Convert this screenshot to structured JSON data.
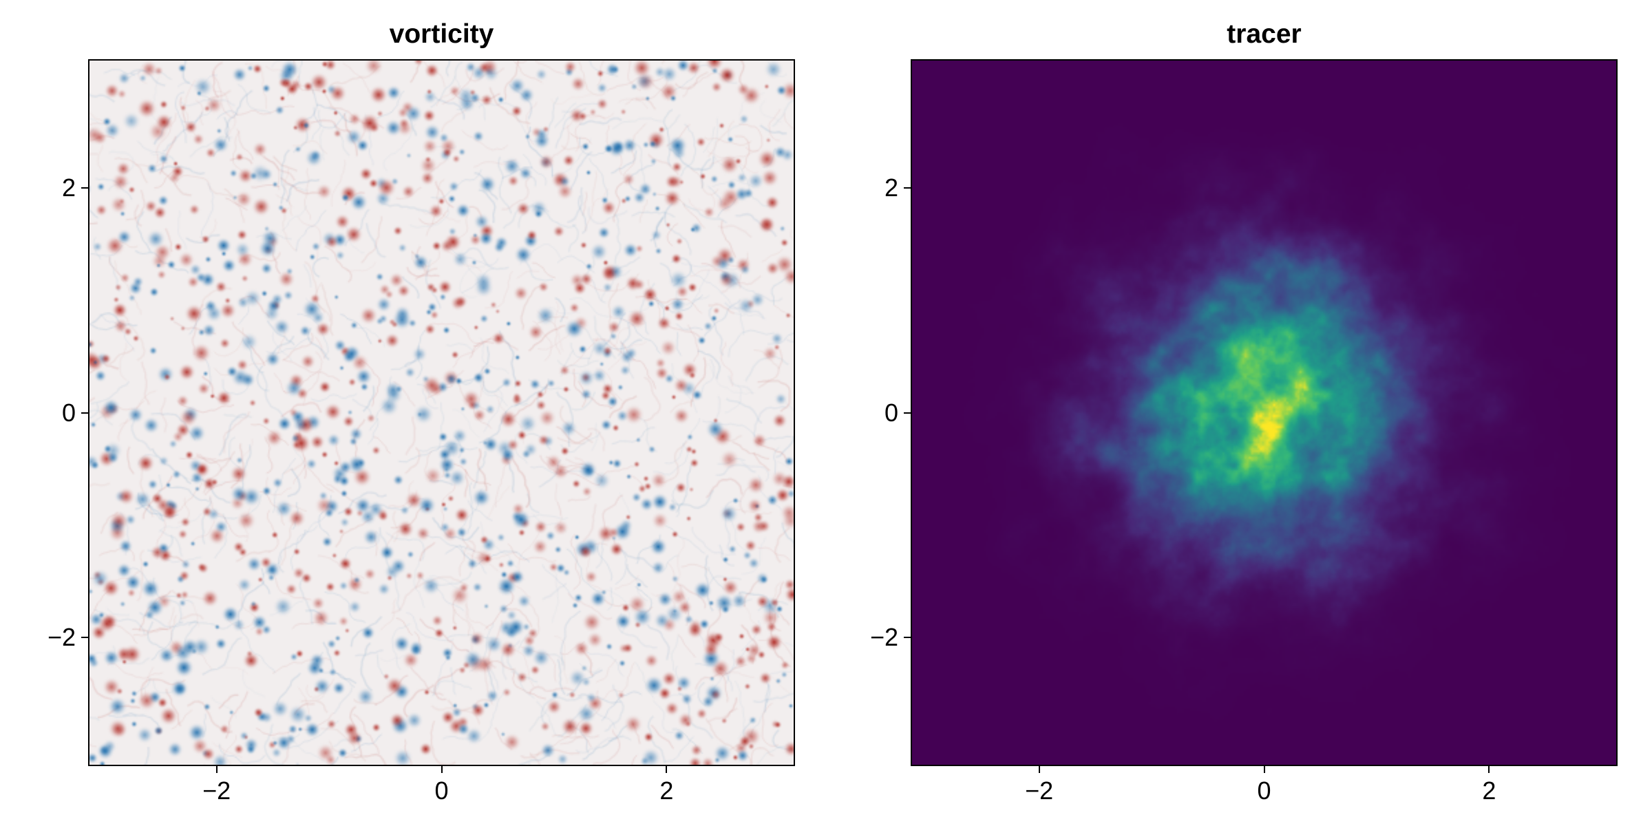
{
  "chart_data": [
    {
      "type": "heatmap",
      "title": "vorticity",
      "xlabel": "",
      "ylabel": "",
      "xlim": [
        -3.14159,
        3.14159
      ],
      "ylim": [
        -3.14159,
        3.14159
      ],
      "xticks": [
        -2,
        0,
        2
      ],
      "yticks": [
        -2,
        0,
        2
      ],
      "xtick_labels": [
        "−2",
        "0",
        "2"
      ],
      "ytick_labels": [
        "−2",
        "0",
        "2"
      ],
      "colormap": "balance (blue–white–red)",
      "colors": {
        "negative": "#1f6fae",
        "zero": "#f2eeee",
        "positive": "#b2302a"
      },
      "grid": false,
      "legend": "none"
    },
    {
      "type": "heatmap",
      "title": "tracer",
      "xlabel": "",
      "ylabel": "",
      "xlim": [
        -3.14159,
        3.14159
      ],
      "ylim": [
        -3.14159,
        3.14159
      ],
      "xticks": [
        -2,
        0,
        2
      ],
      "yticks": [
        -2,
        0,
        2
      ],
      "xtick_labels": [
        "−2",
        "0",
        "2"
      ],
      "ytick_labels": [
        "−2",
        "0",
        "2"
      ],
      "colormap": "viridis",
      "colors": {
        "low": "#440154",
        "mid": "#21918c",
        "high": "#fde725"
      },
      "grid": false,
      "legend": "none"
    }
  ]
}
